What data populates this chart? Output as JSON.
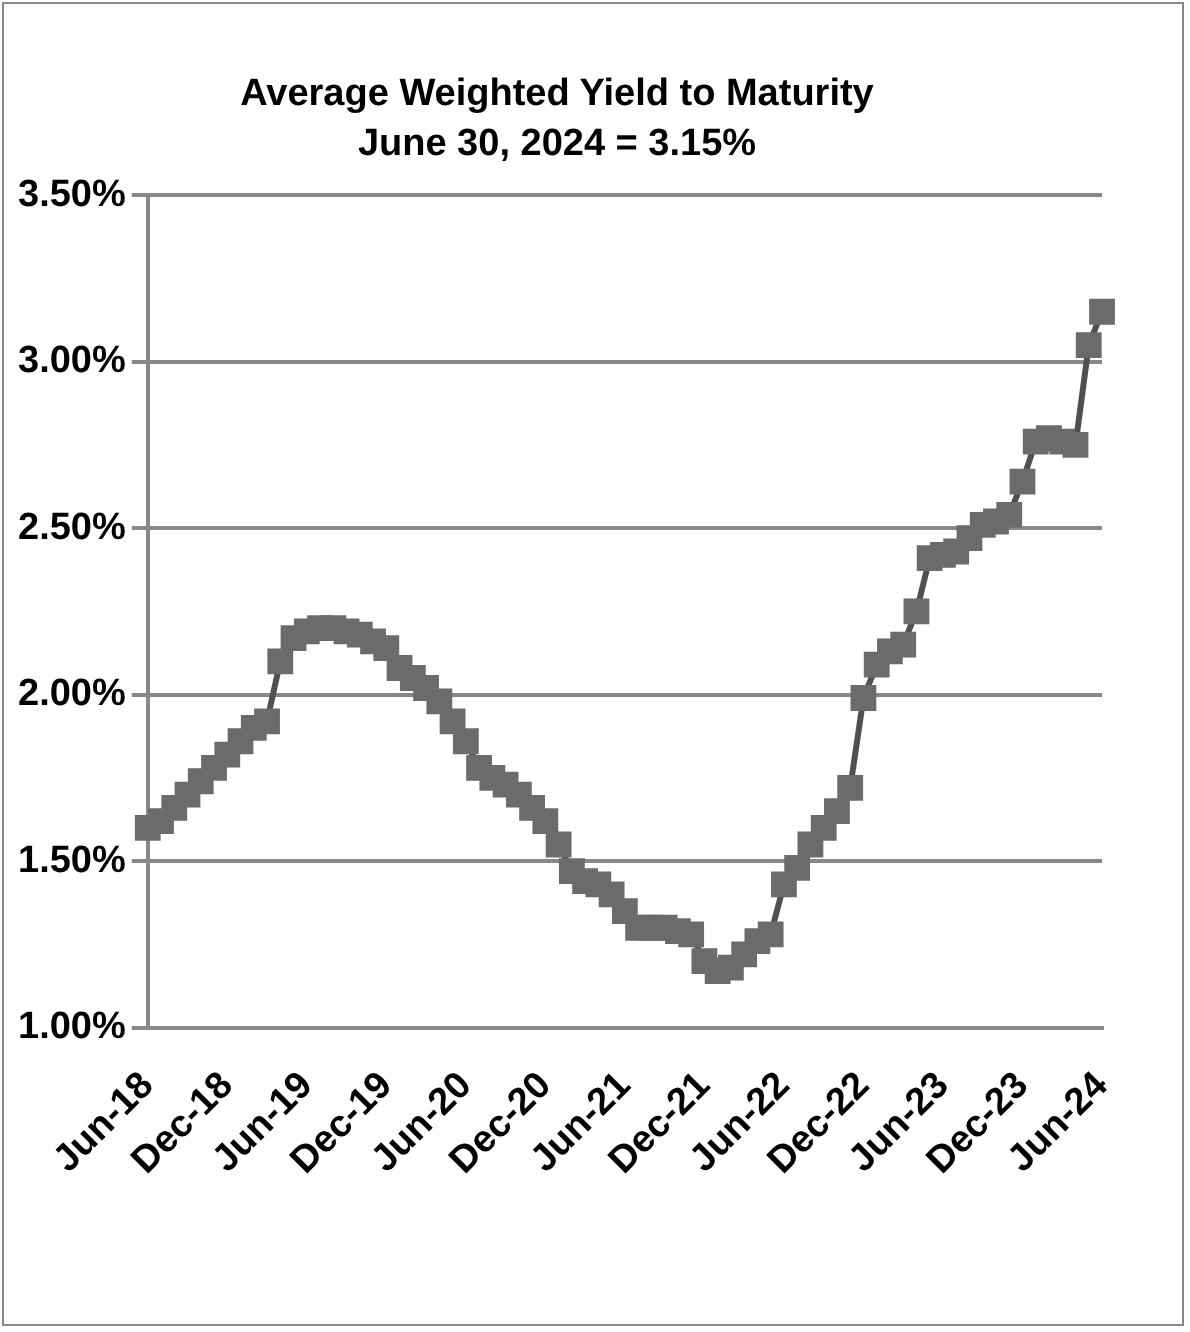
{
  "chart_data": {
    "type": "line",
    "title": "Average Weighted Yield to Maturity",
    "subtitle": "June 30, 2024 = 3.15%",
    "categories": [
      "Jun-18",
      null,
      null,
      null,
      null,
      null,
      "Dec-18",
      null,
      null,
      null,
      null,
      null,
      "Jun-19",
      null,
      null,
      null,
      null,
      null,
      "Dec-19",
      null,
      null,
      null,
      null,
      null,
      "Jun-20",
      null,
      null,
      null,
      null,
      null,
      "Dec-20",
      null,
      null,
      null,
      null,
      null,
      "Jun-21",
      null,
      null,
      null,
      null,
      null,
      "Dec-21",
      null,
      null,
      null,
      null,
      null,
      "Jun-22",
      null,
      null,
      null,
      null,
      null,
      "Dec-22",
      null,
      null,
      null,
      null,
      null,
      "Jun-23",
      null,
      null,
      null,
      null,
      null,
      "Dec-23",
      null,
      null,
      null,
      null,
      null,
      "Jun-24"
    ],
    "series": [
      {
        "color": "#6b6b6b",
        "values": [
          1.6,
          1.62,
          1.66,
          1.7,
          1.74,
          1.78,
          1.82,
          1.86,
          1.9,
          1.92,
          2.1,
          2.17,
          2.19,
          2.2,
          2.2,
          2.19,
          2.18,
          2.16,
          2.14,
          2.08,
          2.05,
          2.02,
          1.98,
          1.92,
          1.86,
          1.78,
          1.75,
          1.73,
          1.7,
          1.66,
          1.62,
          1.55,
          1.47,
          1.44,
          1.43,
          1.4,
          1.35,
          1.3,
          1.3,
          1.3,
          1.29,
          1.28,
          1.2,
          1.17,
          1.18,
          1.22,
          1.26,
          1.28,
          1.43,
          1.48,
          1.55,
          1.6,
          1.65,
          1.72,
          1.99,
          2.09,
          2.13,
          2.15,
          2.25,
          2.41,
          2.42,
          2.43,
          2.47,
          2.51,
          2.52,
          2.54,
          2.64,
          2.76,
          2.77,
          2.76,
          2.75,
          3.05,
          3.15
        ]
      }
    ],
    "ylim": [
      1.0,
      3.5
    ],
    "yticks": [
      {
        "value": 1.0,
        "label": "1.00%"
      },
      {
        "value": 1.5,
        "label": "1.50%"
      },
      {
        "value": 2.0,
        "label": "2.00%"
      },
      {
        "value": 2.5,
        "label": "2.50%"
      },
      {
        "value": 3.0,
        "label": "3.00%"
      },
      {
        "value": 3.5,
        "label": "3.50%"
      }
    ],
    "grid": "y",
    "legend": false,
    "marker": "square",
    "line_style": "solid"
  }
}
